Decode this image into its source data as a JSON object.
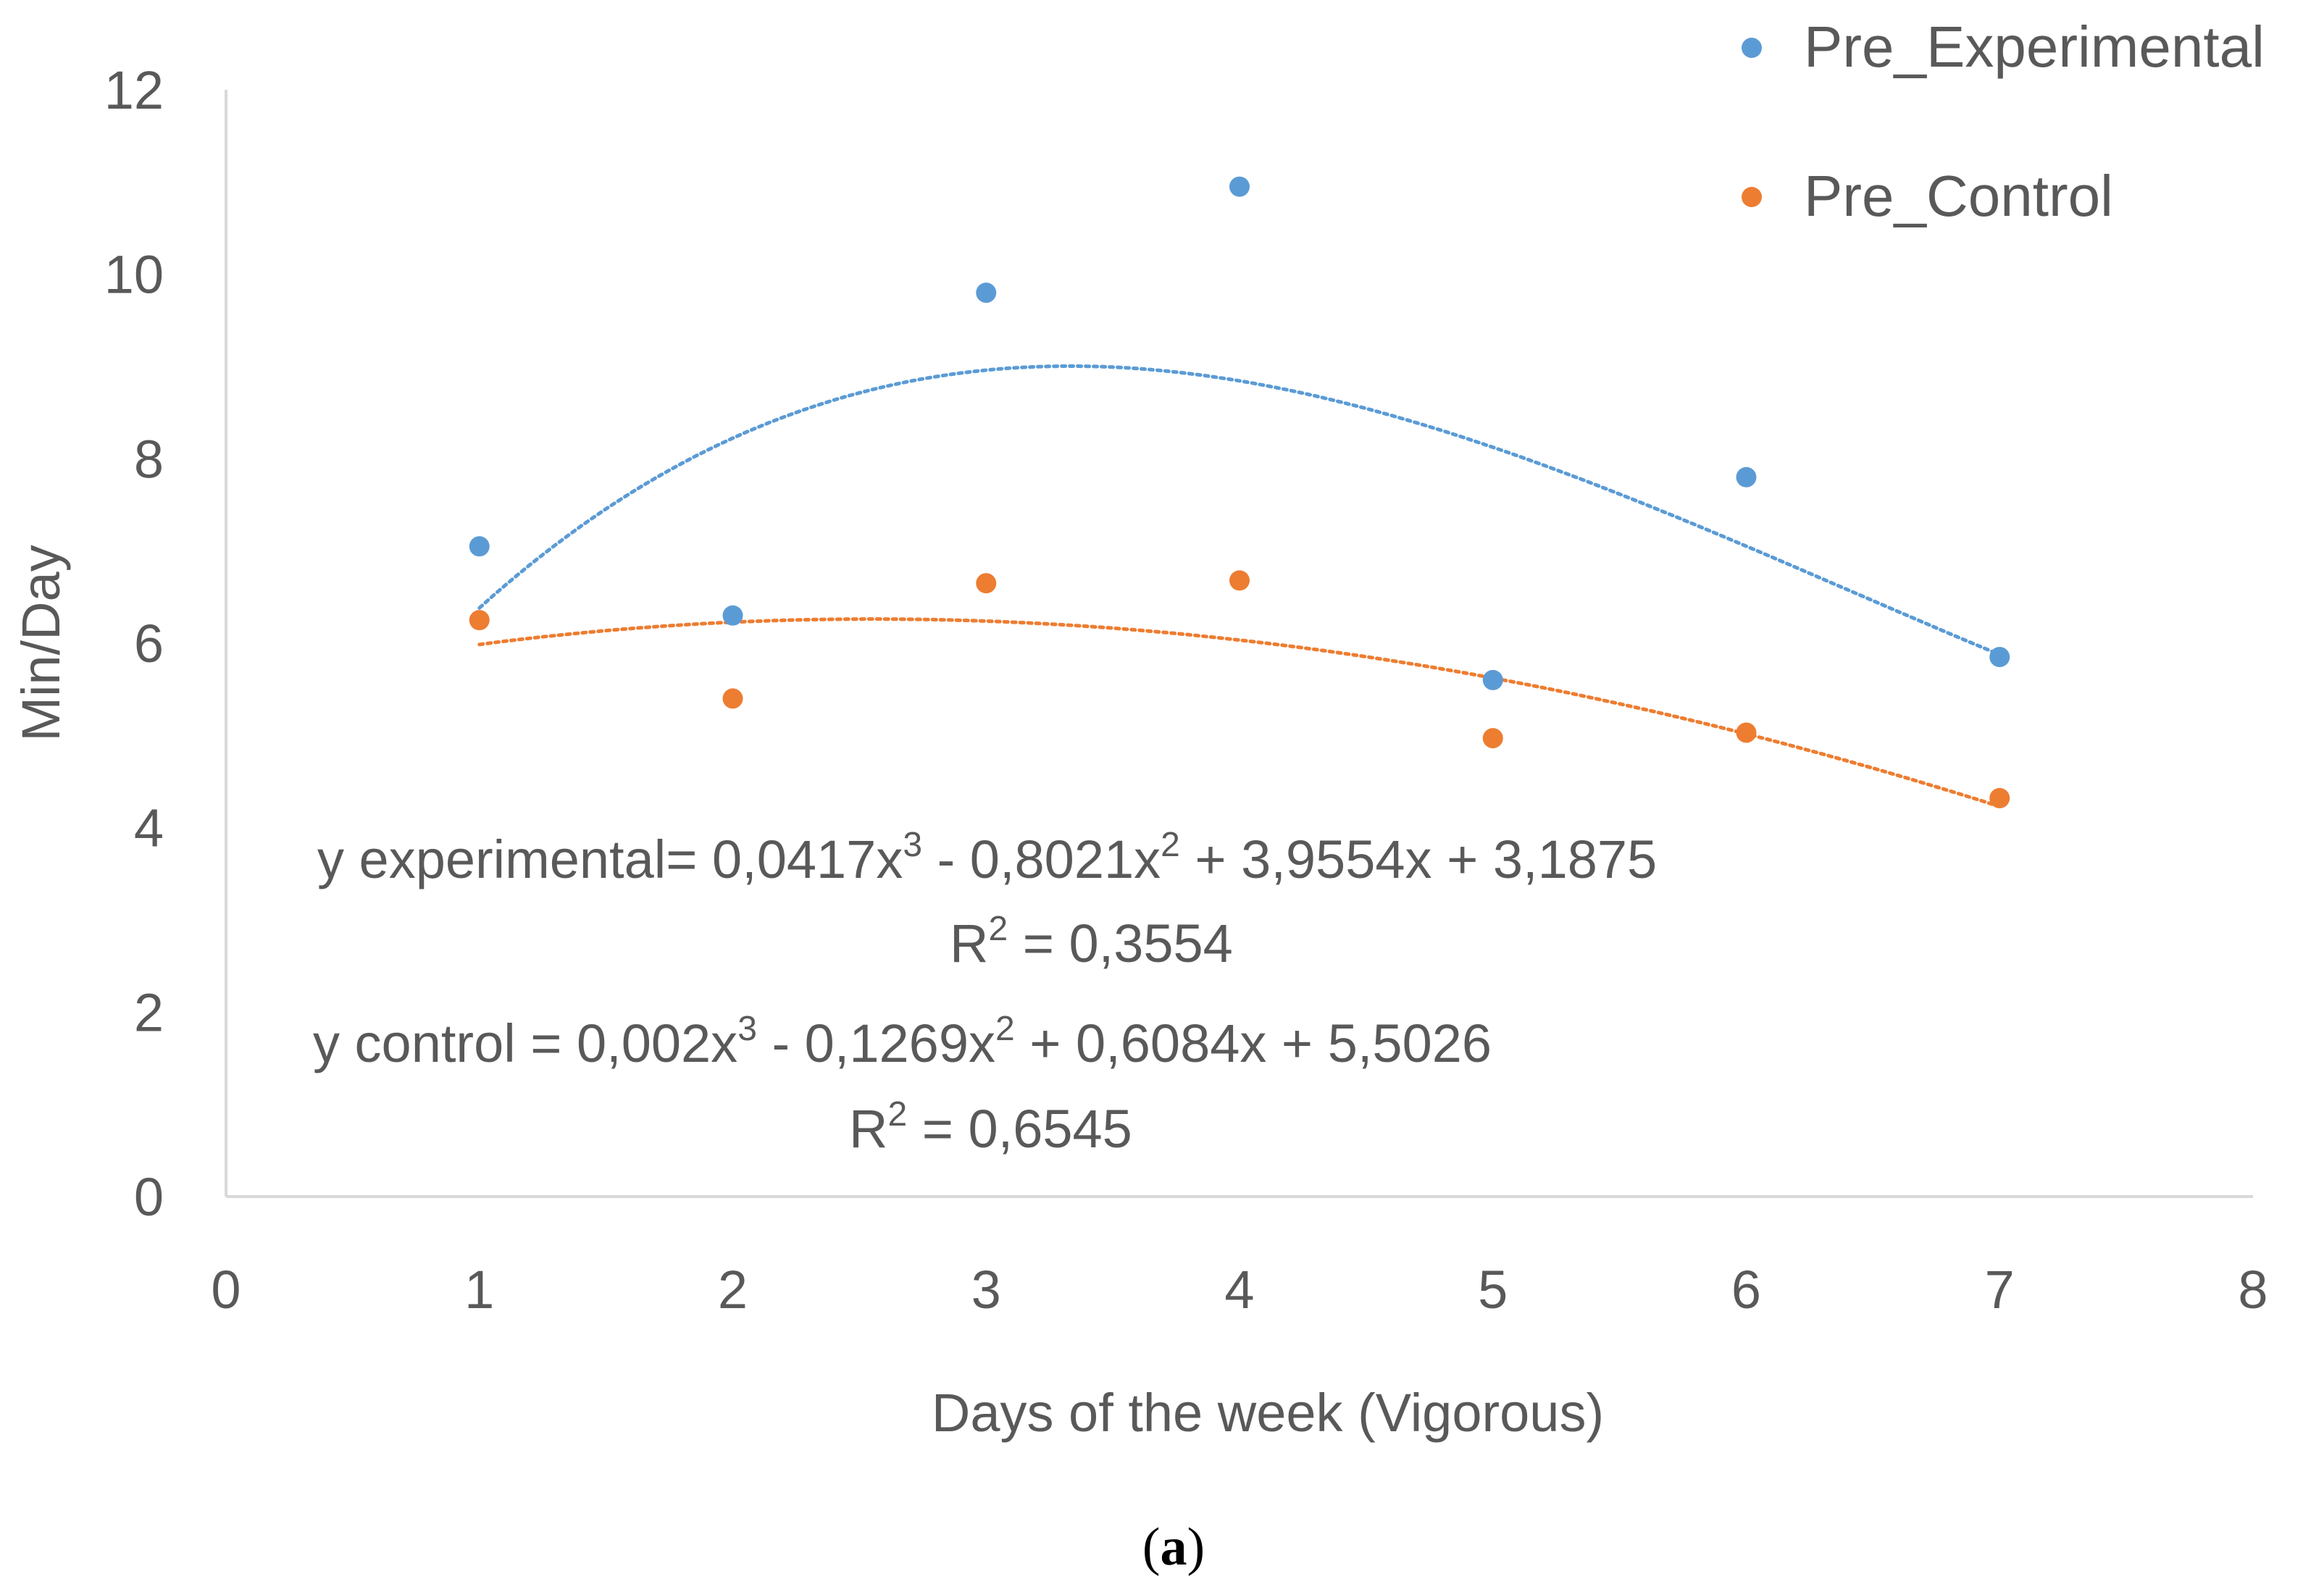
{
  "chart_data": {
    "type": "scatter",
    "title": "",
    "xlabel": "Days of the week (Vigorous)",
    "ylabel": "Min/Day",
    "xlim": [
      0,
      8
    ],
    "ylim": [
      0,
      12
    ],
    "x_ticks": [
      0,
      1,
      2,
      3,
      4,
      5,
      6,
      7,
      8
    ],
    "y_ticks": [
      0,
      2,
      4,
      6,
      8,
      10,
      12
    ],
    "grid": false,
    "legend_position": "top-right",
    "series": [
      {
        "name": "Pre_Experimental",
        "color": "#5B9BD5",
        "x": [
          1,
          2,
          3,
          4,
          5,
          6,
          7
        ],
        "y": [
          7.05,
          6.3,
          9.8,
          10.95,
          5.6,
          7.8,
          5.85
        ],
        "trendline": {
          "type": "polynomial",
          "order": 3,
          "coefficients": [
            0.0417,
            -0.8021,
            3.9554,
            3.1875
          ],
          "equation": "y experimental= 0,0417x3 - 0,8021x2 + 3,9554x + 3,1875",
          "r_squared": "R2 = 0,3554"
        }
      },
      {
        "name": "Pre_Control",
        "color": "#ED7D31",
        "x": [
          1,
          2,
          3,
          4,
          5,
          6,
          7
        ],
        "y": [
          6.25,
          5.4,
          6.65,
          6.68,
          4.97,
          5.03,
          4.32
        ],
        "trendline": {
          "type": "polynomial",
          "order": 3,
          "coefficients": [
            0.002,
            -0.1269,
            0.6084,
            5.5026
          ],
          "equation": "y control = 0,002x3 - 0,1269x2 + 0,6084x + 5,5026",
          "r_squared": "R2 = 0,6545"
        }
      }
    ],
    "annotations": {
      "exp_prefix": "y experimental= 0,0417x",
      "exp_mid1": " - 0,8021x",
      "exp_mid2": " + 3,9554x + 3,1875",
      "exp_r_prefix": "R",
      "exp_r_value": " = 0,3554",
      "ctl_prefix": "y control = 0,002x",
      "ctl_mid1": " - 0,1269x",
      "ctl_mid2": " + 0,6084x + 5,5026",
      "ctl_r_prefix": "R",
      "ctl_r_value": " = 0,6545",
      "sup3": "3",
      "sup2": "2"
    },
    "caption_letter": "a",
    "caption_open": "(",
    "caption_close": ")"
  }
}
